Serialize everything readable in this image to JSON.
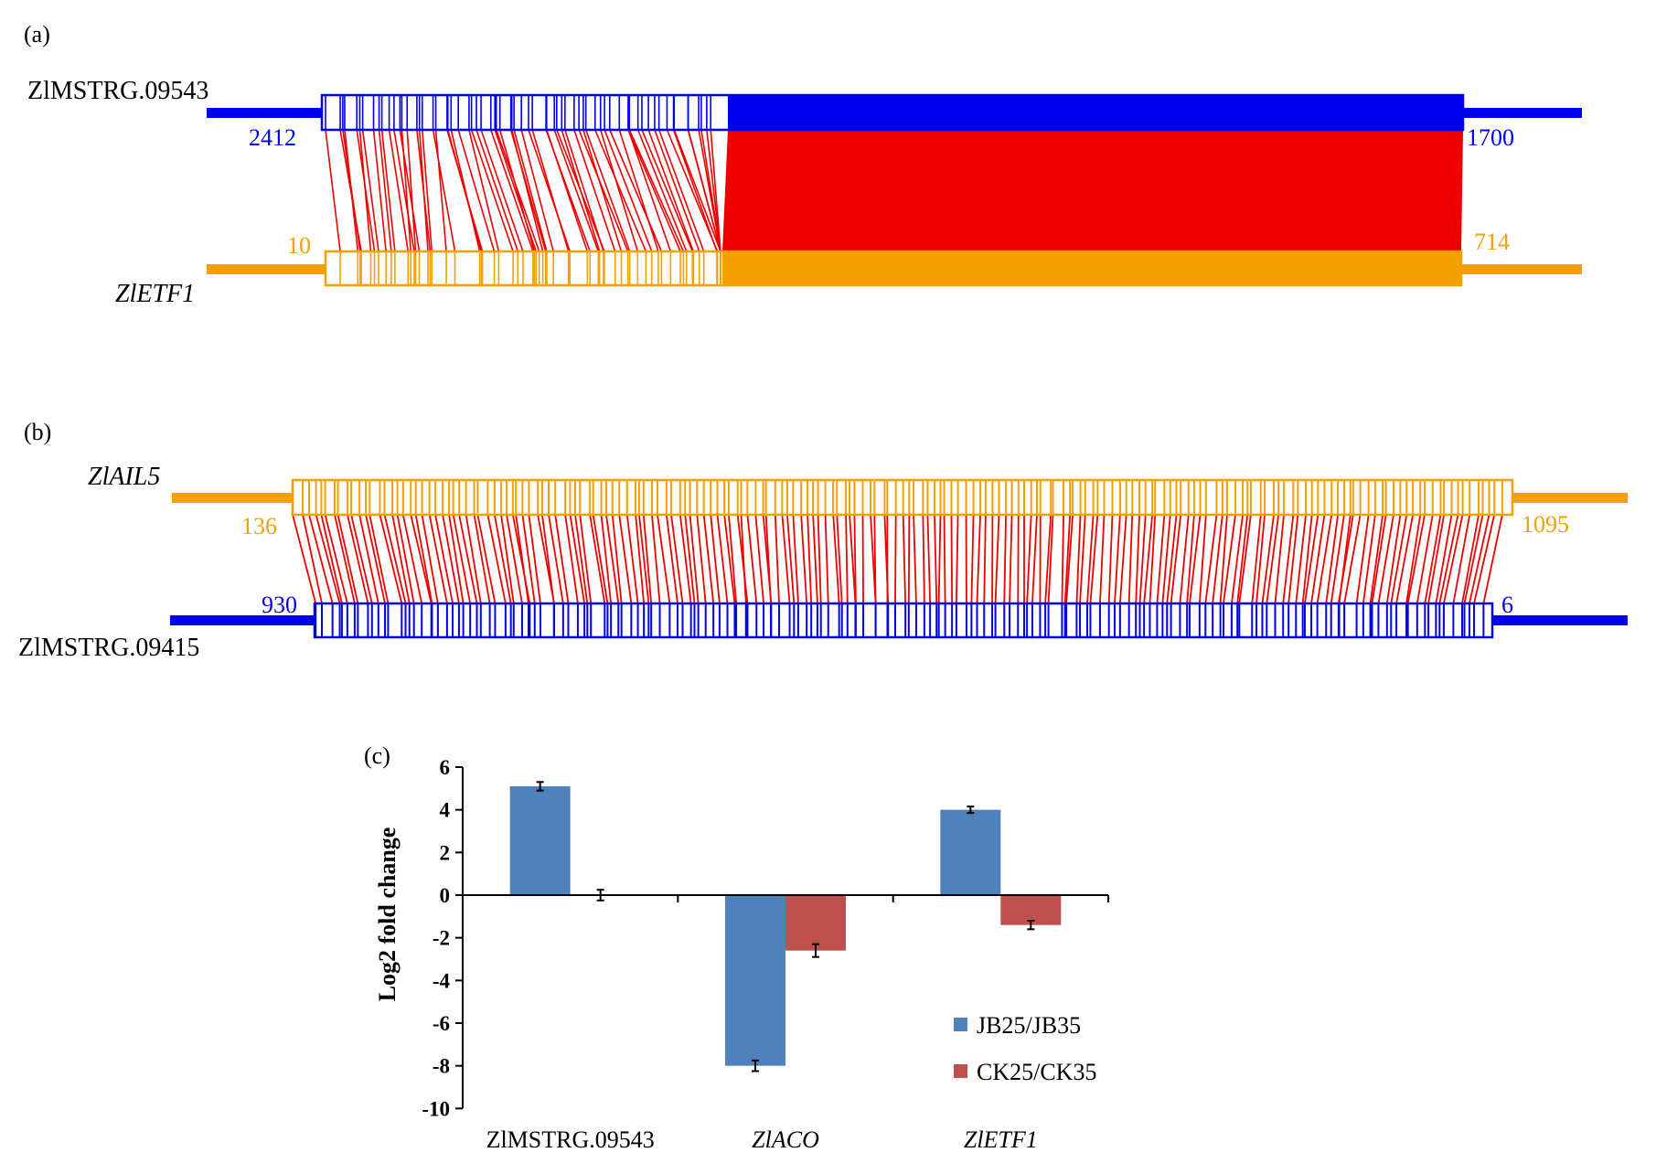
{
  "panels": {
    "a": {
      "label": "(a)",
      "top_gene": {
        "name": "ZlMSTRG.09543",
        "italic": false,
        "color": "#0000ee",
        "start": "2412",
        "end": "1700"
      },
      "bottom_gene": {
        "name": "ZlETF1",
        "italic": true,
        "color": "#f5a000",
        "start": "10",
        "end": "714"
      },
      "link_color": "#ee0000"
    },
    "b": {
      "label": "(b)",
      "top_gene": {
        "name": "ZlAIL5",
        "italic": true,
        "color": "#f5a000",
        "start": "136",
        "end": "1095"
      },
      "bottom_gene": {
        "name": "ZlMSTRG.09415",
        "italic": false,
        "color": "#0000ee",
        "start": "930",
        "end": "6"
      },
      "link_color": "#ee0000"
    },
    "c": {
      "label": "(c)"
    }
  },
  "chart_data": {
    "type": "bar",
    "title": "",
    "xlabel": "",
    "ylabel": "Log2 fold change",
    "ylim": [
      -10,
      6
    ],
    "yticks": [
      "6",
      "4",
      "2",
      "0",
      "-2",
      "-4",
      "-6",
      "-8",
      "-10"
    ],
    "categories": [
      "ZlMSTRG.09543",
      "ZlACO",
      "ZlETF1"
    ],
    "categories_italic": [
      false,
      true,
      true
    ],
    "series": [
      {
        "name": "JB25/JB35",
        "color": "#4f81bd",
        "values": [
          5.1,
          -8.0,
          4.0
        ],
        "errors": [
          0.2,
          0.25,
          0.15
        ]
      },
      {
        "name": "CK25/CK35",
        "color": "#c0504d",
        "values": [
          0.0,
          -2.6,
          -1.4
        ],
        "errors": [
          0.25,
          0.3,
          0.2
        ]
      }
    ],
    "legend": "lower-right inside",
    "grid": false
  }
}
